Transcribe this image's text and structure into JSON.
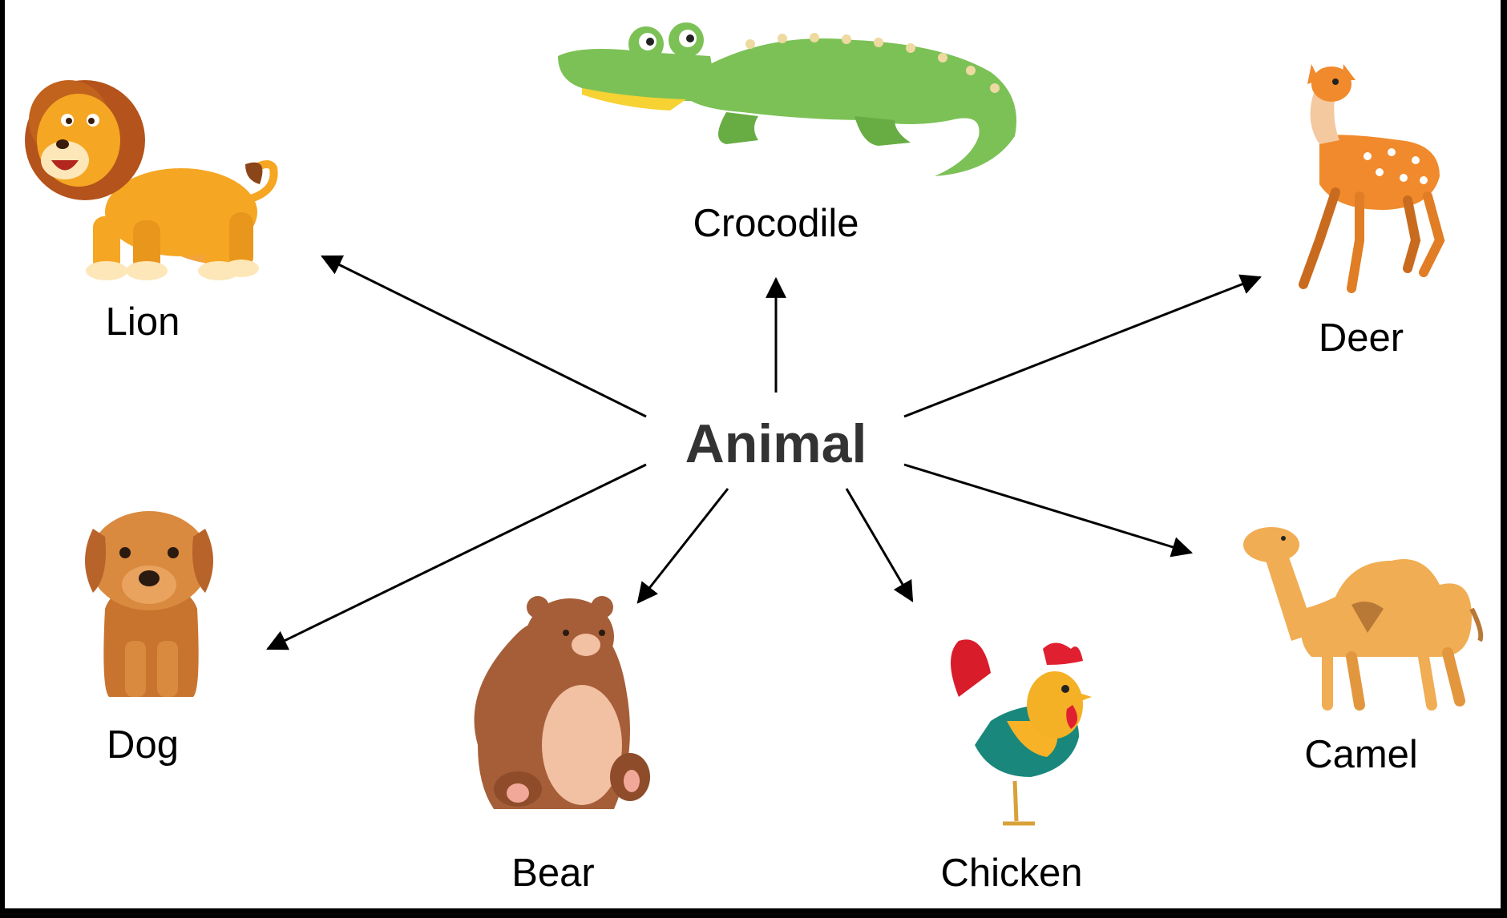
{
  "diagram": {
    "center": "Animal",
    "nodes": [
      {
        "id": "lion",
        "label": "Lion",
        "icon": "lion-icon"
      },
      {
        "id": "crocodile",
        "label": "Crocodile",
        "icon": "crocodile-icon"
      },
      {
        "id": "deer",
        "label": "Deer",
        "icon": "deer-icon"
      },
      {
        "id": "dog",
        "label": "Dog",
        "icon": "dog-icon"
      },
      {
        "id": "bear",
        "label": "Bear",
        "icon": "bear-icon"
      },
      {
        "id": "chicken",
        "label": "Chicken",
        "icon": "chicken-icon"
      },
      {
        "id": "camel",
        "label": "Camel",
        "icon": "camel-icon"
      }
    ],
    "edges": [
      {
        "from": "Animal",
        "to": "Lion"
      },
      {
        "from": "Animal",
        "to": "Crocodile"
      },
      {
        "from": "Animal",
        "to": "Deer"
      },
      {
        "from": "Animal",
        "to": "Dog"
      },
      {
        "from": "Animal",
        "to": "Bear"
      },
      {
        "from": "Animal",
        "to": "Chicken"
      },
      {
        "from": "Animal",
        "to": "Camel"
      }
    ],
    "colors": {
      "background": "#ffffff",
      "frame": "#000000",
      "arrow": "#000000",
      "center_text": "#333333"
    }
  }
}
